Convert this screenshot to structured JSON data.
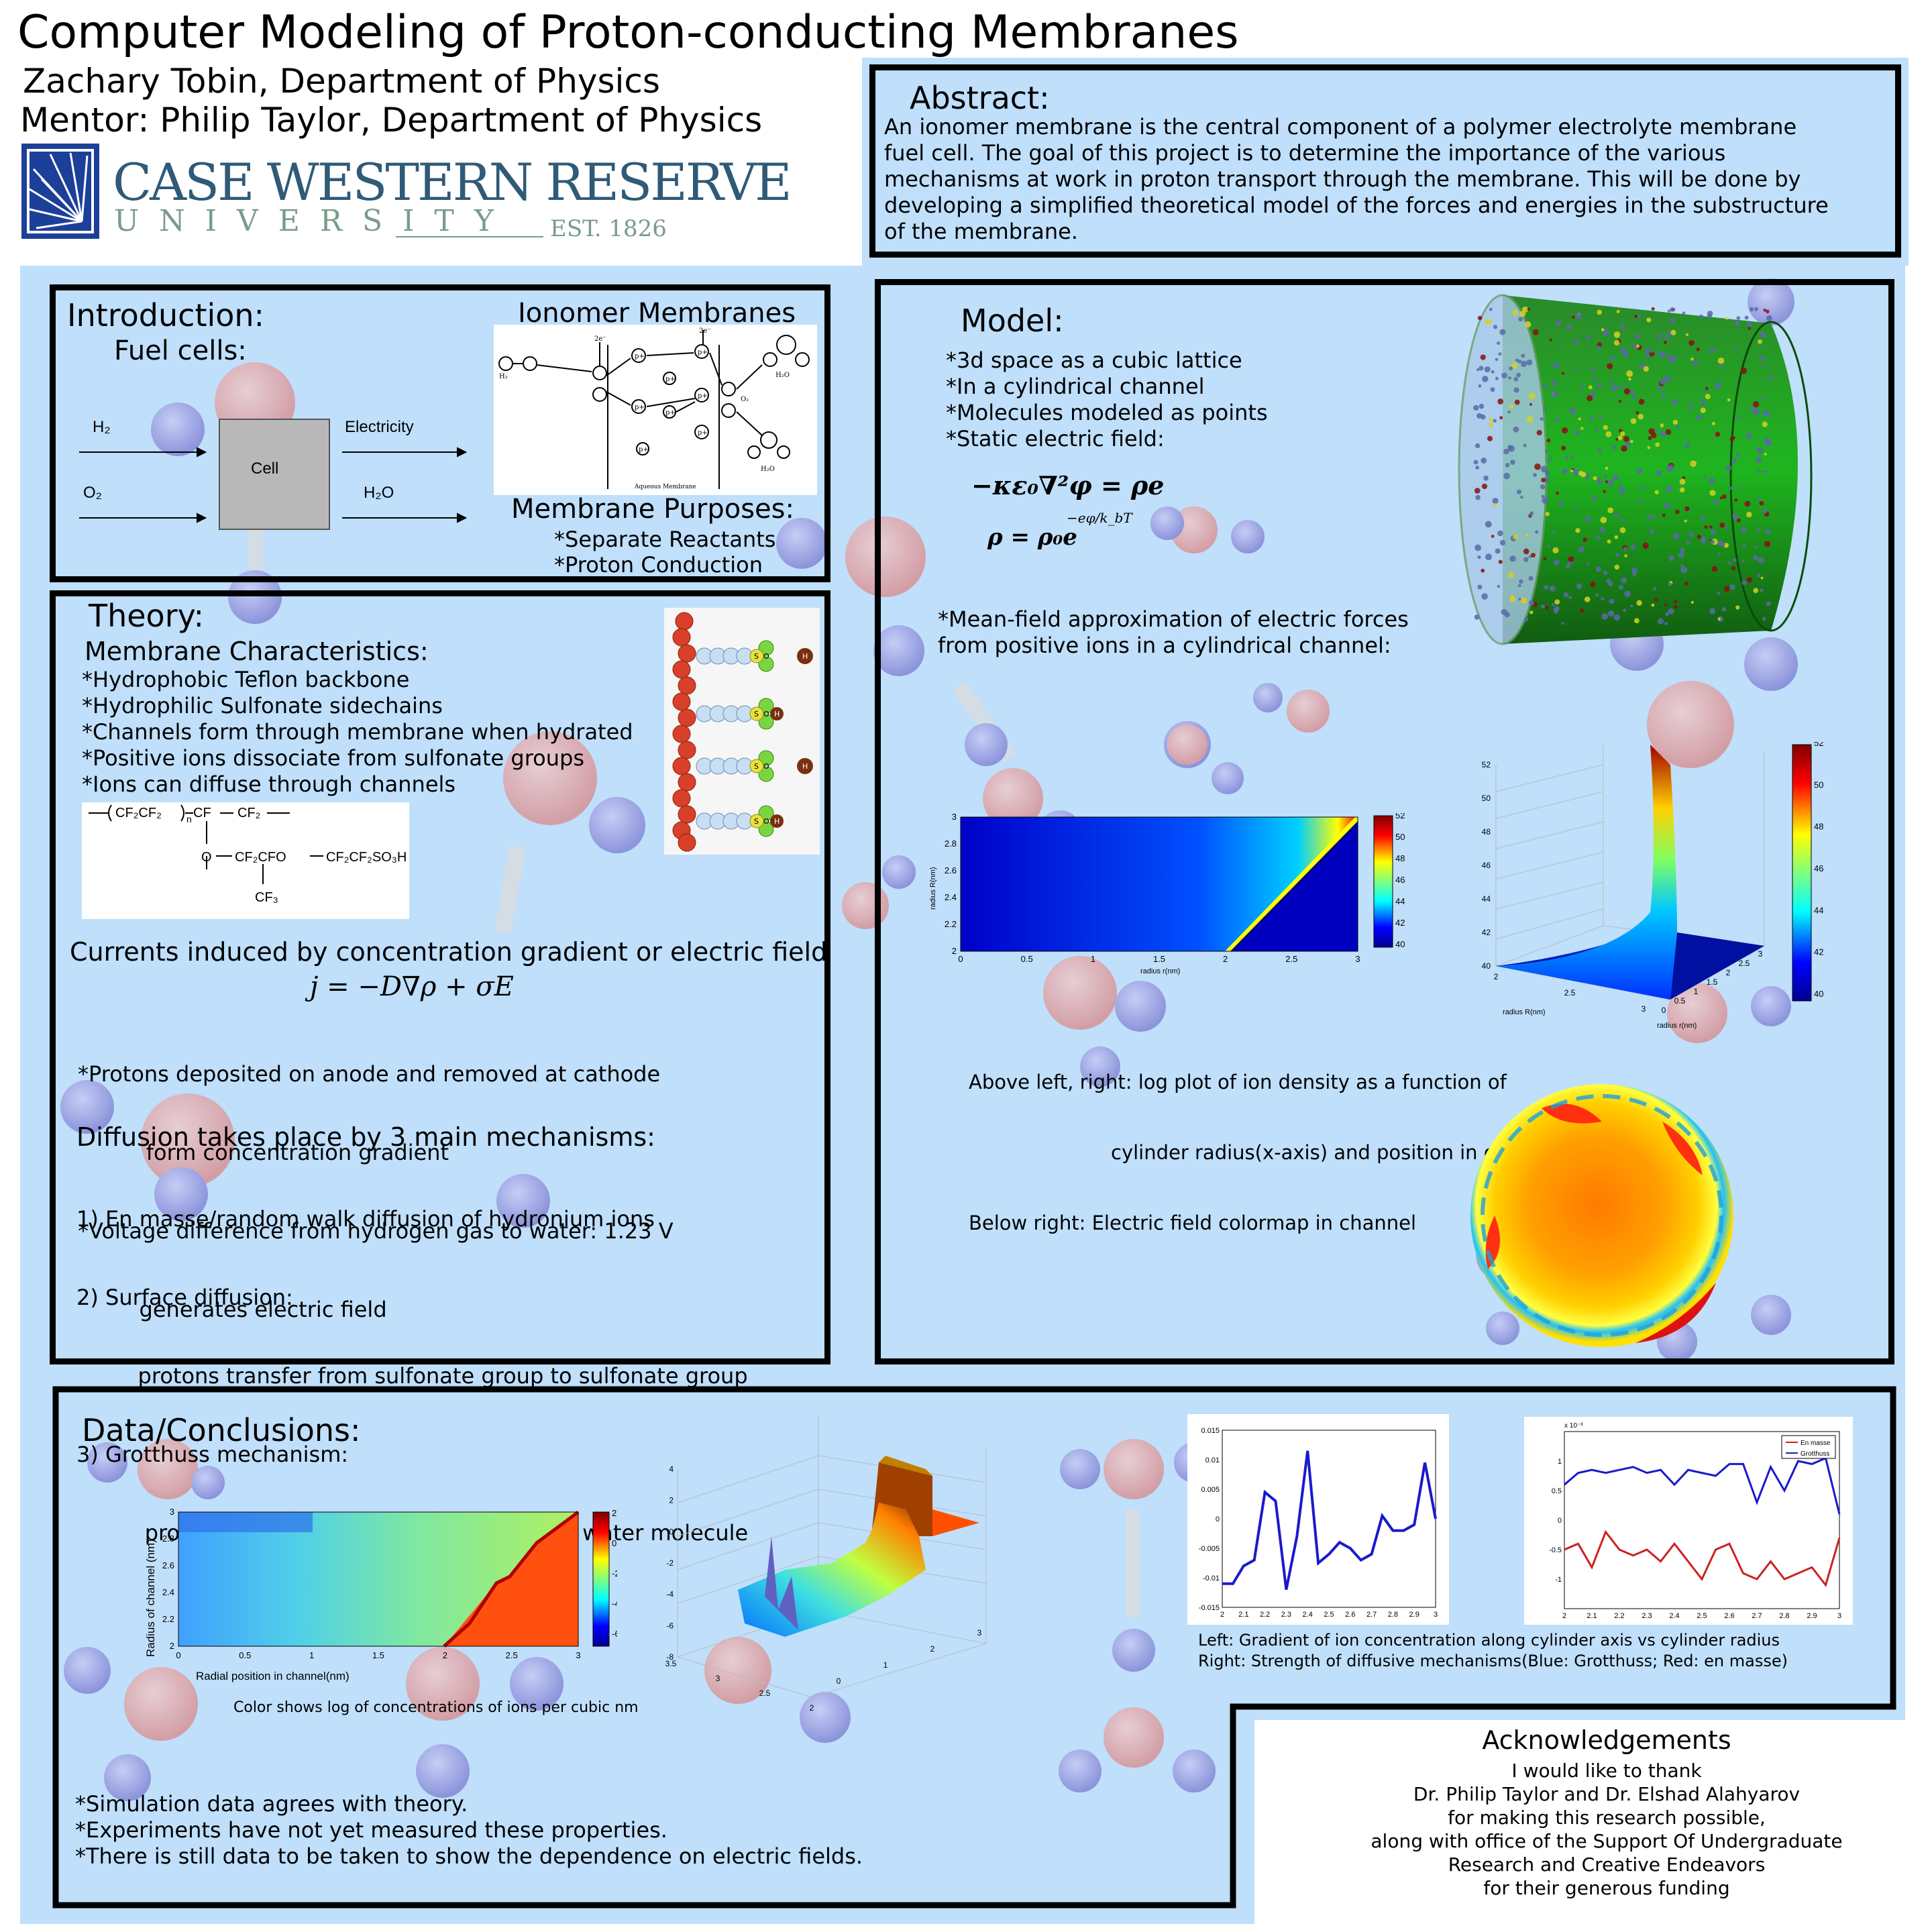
{
  "header": {
    "title": "Computer Modeling of Proton-conducting Membranes",
    "author": "Zachary Tobin, Department of Physics",
    "mentor": "Mentor: Philip Taylor, Department of Physics",
    "logo": {
      "line1": "CASE WESTERN RESERVE",
      "line2": "UNIVERSITY",
      "est": "EST. 1826",
      "icon": "sunburst-logo-icon"
    }
  },
  "abstract": {
    "heading": "Abstract:",
    "lines": [
      "An ionomer membrane is the central component of a polymer electrolyte membrane",
      "fuel cell.  The goal of this project is to determine the importance of the various",
      "mechanisms at work in proton transport through the membrane.  This will be done by",
      "developing a simplified theoretical model of the forces and energies in the substructure",
      "of the membrane."
    ]
  },
  "introduction": {
    "heading": "Introduction:",
    "subheading": "Fuel cells:",
    "diagram": {
      "h2": "H₂",
      "o2": "O₂",
      "cell": "Cell",
      "electricity": "Electricity",
      "h2o": "H₂O"
    },
    "ionomer_title": "Ionomer Membranes",
    "membrane_label": "Aqueous Membrane",
    "purposes_title": "Membrane Purposes:",
    "purposes": [
      "*Separate Reactants",
      "*Proton Conduction"
    ]
  },
  "theory": {
    "heading": "Theory:",
    "characteristics_title": "Membrane Characteristics:",
    "characteristics": [
      "*Hydrophobic Teflon backbone",
      "*Hydrophilic Sulfonate sidechains",
      "*Channels form through membrane when hydrated",
      "*Positive ions dissociate from sulfonate groups",
      "*Ions can diffuse through channels"
    ],
    "currents_title": "Currents induced by concentration gradient or electric field",
    "equation": "j = −D∇ρ + σE",
    "current_lines": [
      "*Protons deposited on anode and removed at cathode",
      "          form concentration gradient",
      "*Voltage difference from hydrogen gas to water: 1.23 V",
      "         generates electric field"
    ],
    "diffusion_title": "Diffusion takes place by 3 main mechanisms:",
    "diffusion_lines": [
      "1) En masse/random walk diffusion of hydronium ions",
      "2) Surface diffusion:",
      "         protons transfer from sulfonate group to sulfonate group",
      "3) Grotthuss mechanism:",
      "          protons transfer from water molecule to water molecule"
    ]
  },
  "model": {
    "heading": "Model:",
    "points": [
      "*3d space as a cubic lattice",
      "*In a cylindrical channel",
      "*Molecules modeled as points",
      "*Static electric field:"
    ],
    "eq1": "−κε₀∇²φ = ρe",
    "eq2": "ρ = ρ₀e",
    "eq2_exp": "−eφ/k_bT",
    "meanfield": [
      "*Mean-field approximation of electric forces",
      "from positive ions in a cylindrical channel:"
    ],
    "caption": [
      "Above left, right: log plot of ion density as a function of",
      "                       cylinder radius(x-axis) and position in cylinder(y-axis)",
      "Below right: Electric field colormap in channel"
    ]
  },
  "data": {
    "heading": "Data/Conclusions:",
    "heatmap_caption": "Color shows log of concentrations of ions per cubic nm",
    "line_caption": [
      "Left: Gradient of ion concentration along cylinder axis vs cylinder radius",
      "Right: Strength of diffusive mechanisms(Blue: Grotthuss; Red: en masse)"
    ],
    "conclusions": [
      "*Simulation data agrees with theory.",
      "*Experiments have not yet measured these properties.",
      "*There is still data to be taken to show the dependence on electric fields."
    ]
  },
  "acknowledgements": {
    "heading": "Acknowledgements",
    "lines": [
      "I would like to thank",
      "Dr. Philip Taylor and Dr. Elshad Alahyarov",
      "for making this research possible,",
      "along with office of the Support Of Undergraduate",
      "Research and Creative Endeavors",
      "for their generous funding"
    ]
  },
  "chart_data": [
    {
      "type": "heatmap",
      "id": "model-density-heatmap",
      "xlabel": "radius r(nm)",
      "ylabel": "radius R(nm)",
      "xlim": [
        0,
        3
      ],
      "ylim": [
        2,
        3
      ],
      "xticks": [
        "0",
        "0.5",
        "1",
        "1.5",
        "2",
        "2.5",
        "3"
      ],
      "yticks": [
        "2",
        "2.2",
        "2.4",
        "2.6",
        "2.8",
        "3"
      ],
      "colorbar": [
        40,
        52
      ],
      "colorbar_ticks": [
        "40",
        "42",
        "44",
        "46",
        "48",
        "50",
        "52"
      ]
    },
    {
      "type": "surface",
      "id": "model-density-surface",
      "xlabel": "radius r(nm)",
      "ylabel": "radius R(nm)",
      "zticks": [
        "40",
        "42",
        "44",
        "46",
        "48",
        "50",
        "52"
      ],
      "xticks": [
        "0",
        "0.5",
        "1",
        "1.5",
        "2",
        "2.5",
        "3"
      ],
      "yticks": [
        "2",
        "2.5",
        "3"
      ],
      "colorbar_ticks": [
        "40",
        "42",
        "44",
        "46",
        "48",
        "50",
        "52"
      ]
    },
    {
      "type": "heatmap",
      "id": "data-concentration-heatmap",
      "xlabel": "Radial position in channel(nm)",
      "ylabel": "Radius of channel (nm)",
      "xlim": [
        0,
        3
      ],
      "ylim": [
        2,
        3
      ],
      "xticks": [
        "0",
        "0.5",
        "1",
        "1.5",
        "2",
        "2.5",
        "3"
      ],
      "yticks": [
        "2",
        "2.2",
        "2.4",
        "2.6",
        "2.8",
        "3"
      ],
      "colorbar_ticks": [
        "2",
        "0",
        "-2",
        "-4",
        "-6"
      ]
    },
    {
      "type": "surface",
      "id": "data-concentration-surface",
      "zticks": [
        "4",
        "2",
        "0",
        "-2",
        "-4",
        "-6",
        "-8"
      ],
      "xticks": [
        "0",
        "1",
        "2",
        "3"
      ],
      "yticks": [
        "3.5",
        "3",
        "2.5",
        "2"
      ]
    },
    {
      "type": "line",
      "id": "gradient-line",
      "x": [
        2.0,
        2.05,
        2.1,
        2.15,
        2.2,
        2.25,
        2.3,
        2.35,
        2.4,
        2.45,
        2.5,
        2.55,
        2.6,
        2.65,
        2.7,
        2.75,
        2.8,
        2.85,
        2.9,
        2.95,
        3.0
      ],
      "y": [
        -0.011,
        -0.011,
        -0.008,
        -0.007,
        0.0045,
        0.003,
        -0.012,
        -0.003,
        0.0115,
        -0.0075,
        -0.006,
        -0.004,
        -0.005,
        -0.007,
        -0.006,
        0.0005,
        -0.002,
        -0.002,
        -0.001,
        0.0095,
        0.0
      ],
      "xlim": [
        2,
        3
      ],
      "ylim": [
        -0.015,
        0.015
      ],
      "xticks": [
        "2",
        "2.1",
        "2.2",
        "2.3",
        "2.4",
        "2.5",
        "2.6",
        "2.7",
        "2.8",
        "2.9",
        "3"
      ],
      "yticks": [
        "0.015",
        "0.01",
        "0.005",
        "0",
        "-0.005",
        "-0.01",
        "-0.015"
      ],
      "color": "#1a1acc"
    },
    {
      "type": "line",
      "id": "mechanism-line",
      "x": [
        2.0,
        2.05,
        2.1,
        2.15,
        2.2,
        2.25,
        2.3,
        2.35,
        2.4,
        2.45,
        2.5,
        2.55,
        2.6,
        2.65,
        2.7,
        2.75,
        2.8,
        2.85,
        2.9,
        2.95,
        3.0
      ],
      "series": [
        {
          "name": "En masse",
          "color": "#cc2222",
          "values": [
            -0.5,
            -0.4,
            -0.8,
            -0.2,
            -0.5,
            -0.6,
            -0.5,
            -0.7,
            -0.4,
            -0.7,
            -1.0,
            -0.5,
            -0.4,
            -0.9,
            -1.0,
            -0.7,
            -1.0,
            -0.9,
            -0.8,
            -1.1,
            -0.3
          ]
        },
        {
          "name": "Grotthuss",
          "color": "#1a1acc",
          "values": [
            0.6,
            0.8,
            0.85,
            0.8,
            0.85,
            0.9,
            0.8,
            0.85,
            0.6,
            0.85,
            0.8,
            0.75,
            0.95,
            0.95,
            0.3,
            0.9,
            0.5,
            1.0,
            0.95,
            1.05,
            0.1
          ]
        }
      ],
      "ylim": [
        -1.5,
        1.5
      ],
      "exponent_label": "x 10⁻³",
      "xticks": [
        "2",
        "2.1",
        "2.2",
        "2.3",
        "2.4",
        "2.5",
        "2.6",
        "2.7",
        "2.8",
        "2.9",
        "3"
      ],
      "yticks": [
        "1",
        "0.5",
        "0",
        "-0.5",
        "-1"
      ]
    }
  ]
}
